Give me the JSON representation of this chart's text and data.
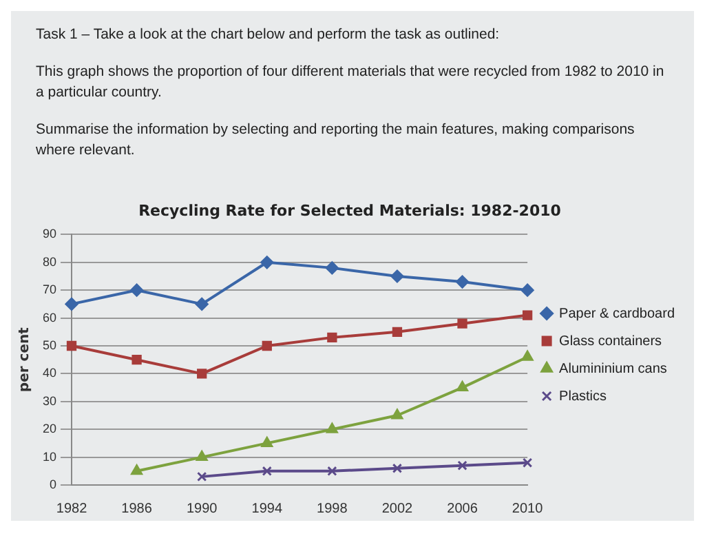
{
  "chart_data": {
    "type": "line",
    "title": "Recycling Rate for Selected Materials: 1982-2010",
    "annotations": [
      "Task 1 – Take a look at the chart below and perform the task as outlined:",
      "This graph shows the proportion of four different materials that were recycled from 1982 to 2010 in a particular country.",
      "Summarise the information by selecting and reporting the main features, making comparisons where relevant."
    ],
    "ylabel": "per cent",
    "categories": [
      "1982",
      "1986",
      "1990",
      "1994",
      "1998",
      "2002",
      "2006",
      "2010"
    ],
    "series": [
      {
        "name": "Paper & cardboard",
        "color": "#3a66a8",
        "marker": "diamond",
        "values": [
          65,
          70,
          65,
          80,
          78,
          75,
          73,
          70
        ]
      },
      {
        "name": "Glass containers",
        "color": "#a83c3a",
        "marker": "square",
        "values": [
          50,
          45,
          40,
          50,
          53,
          55,
          58,
          61
        ]
      },
      {
        "name": "Alumininium cans",
        "color": "#7da23e",
        "marker": "triangle",
        "values": [
          null,
          5,
          10,
          15,
          20,
          25,
          35,
          46
        ]
      },
      {
        "name": "Plastics",
        "color": "#5b4a8a",
        "marker": "cross",
        "values": [
          null,
          null,
          3,
          5,
          5,
          6,
          7,
          8
        ]
      }
    ],
    "ylim": [
      0,
      90
    ],
    "yticks": [
      0,
      10,
      20,
      30,
      40,
      50,
      60,
      70,
      80,
      90
    ],
    "grid": "y",
    "legend": "right"
  }
}
